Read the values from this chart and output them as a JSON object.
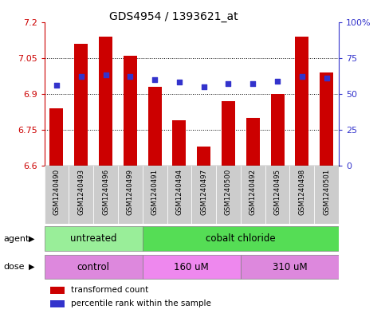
{
  "title": "GDS4954 / 1393621_at",
  "samples": [
    "GSM1240490",
    "GSM1240493",
    "GSM1240496",
    "GSM1240499",
    "GSM1240491",
    "GSM1240494",
    "GSM1240497",
    "GSM1240500",
    "GSM1240492",
    "GSM1240495",
    "GSM1240498",
    "GSM1240501"
  ],
  "bar_values": [
    6.84,
    7.11,
    7.14,
    7.06,
    6.93,
    6.79,
    6.68,
    6.87,
    6.8,
    6.9,
    7.14,
    6.99
  ],
  "percentile_values": [
    56,
    62,
    63,
    62,
    60,
    58,
    55,
    57,
    57,
    59,
    62,
    61
  ],
  "bar_color": "#CC0000",
  "percentile_color": "#3333CC",
  "bar_bottom": 6.6,
  "ylim_left": [
    6.6,
    7.2
  ],
  "ylim_right": [
    0,
    100
  ],
  "yticks_left": [
    6.6,
    6.75,
    6.9,
    7.05,
    7.2
  ],
  "yticks_right": [
    0,
    25,
    50,
    75,
    100
  ],
  "ytick_labels_right": [
    "0",
    "25",
    "50",
    "75",
    "100%"
  ],
  "hlines": [
    6.75,
    6.9,
    7.05
  ],
  "agent_groups": [
    {
      "label": "untreated",
      "start": 0,
      "end": 4,
      "color": "#99EE99"
    },
    {
      "label": "cobalt chloride",
      "start": 4,
      "end": 12,
      "color": "#55DD55"
    }
  ],
  "dose_groups": [
    {
      "label": "control",
      "start": 0,
      "end": 4,
      "color": "#DD88DD"
    },
    {
      "label": "160 uM",
      "start": 4,
      "end": 8,
      "color": "#EE88EE"
    },
    {
      "label": "310 uM",
      "start": 8,
      "end": 12,
      "color": "#DD88DD"
    }
  ],
  "legend_items": [
    {
      "label": "transformed count",
      "color": "#CC0000"
    },
    {
      "label": "percentile rank within the sample",
      "color": "#3333CC"
    }
  ],
  "bg_color": "#FFFFFF",
  "plot_bg": "#FFFFFF",
  "tick_bg": "#CCCCCC",
  "bar_width": 0.55,
  "ylabel_left_color": "#CC0000",
  "ylabel_right_color": "#3333CC",
  "title_fontsize": 10
}
